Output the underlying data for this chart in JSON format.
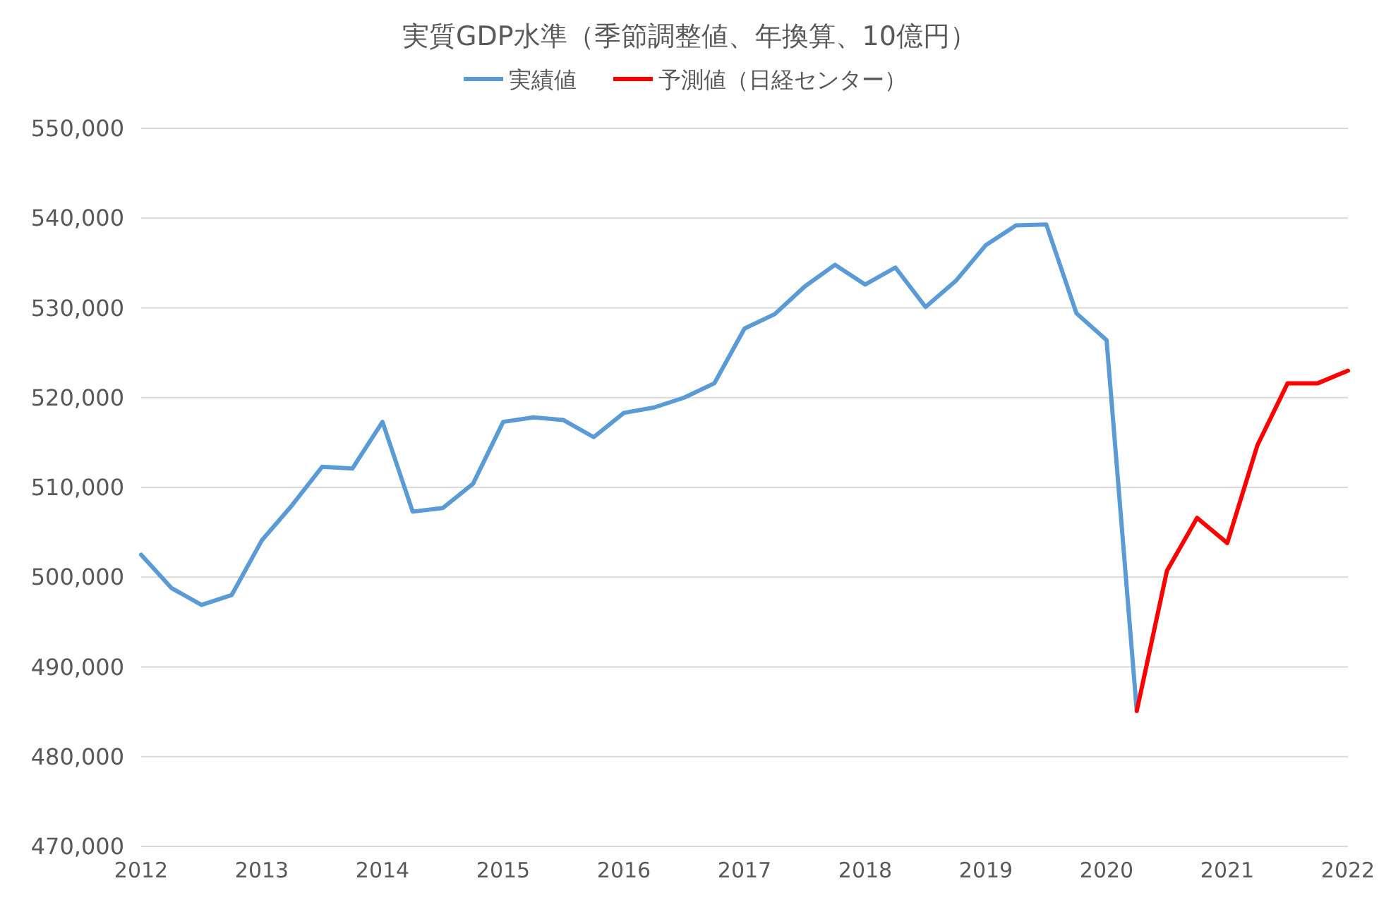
{
  "chart_data": {
    "type": "line",
    "title": "実質GDP水準（季節調整値、年換算、10億円）",
    "xlim": [
      2012,
      2022
    ],
    "xticks": [
      2012,
      2013,
      2014,
      2015,
      2016,
      2017,
      2018,
      2019,
      2020,
      2021,
      2022
    ],
    "ylim": [
      470000,
      550000
    ],
    "yticks": [
      {
        "value": 470000,
        "label": "470,000"
      },
      {
        "value": 480000,
        "label": "480,000"
      },
      {
        "value": 490000,
        "label": "490,000"
      },
      {
        "value": 500000,
        "label": "500,000"
      },
      {
        "value": 510000,
        "label": "510,000"
      },
      {
        "value": 520000,
        "label": "520,000"
      },
      {
        "value": 530000,
        "label": "530,000"
      },
      {
        "value": 540000,
        "label": "540,000"
      },
      {
        "value": 550000,
        "label": "550,000"
      }
    ],
    "grid": "y",
    "legend": "top",
    "marker": "none",
    "line_style": "solid",
    "series": [
      {
        "name": "実績値",
        "color": "#5b9bd5",
        "x": [
          2012,
          2012.25,
          2012.5,
          2012.75,
          2013,
          2013.25,
          2013.5,
          2013.75,
          2014,
          2014.25,
          2014.5,
          2014.75,
          2015,
          2015.25,
          2015.5,
          2015.75,
          2016,
          2016.25,
          2016.5,
          2016.75,
          2017,
          2017.25,
          2017.5,
          2017.75,
          2018,
          2018.25,
          2018.5,
          2018.75,
          2019,
          2019.25,
          2019.5,
          2019.75,
          2020,
          2020.25
        ],
        "values": [
          502500,
          498800,
          496900,
          498000,
          504100,
          508000,
          512300,
          512100,
          517300,
          507300,
          507700,
          510400,
          517300,
          517800,
          517500,
          515600,
          518300,
          518900,
          520000,
          521600,
          527700,
          529300,
          532400,
          534800,
          532600,
          534500,
          530100,
          533000,
          537000,
          539200,
          539300,
          529400,
          526400,
          485100
        ]
      },
      {
        "name": "予測値（日経センター）",
        "color": "#ff0000",
        "x": [
          2020.25,
          2020.5,
          2020.75,
          2021,
          2021.25,
          2021.5,
          2021.75,
          2022
        ],
        "values": [
          485100,
          500700,
          506600,
          503800,
          514700,
          521600,
          521600,
          523000
        ]
      }
    ]
  }
}
